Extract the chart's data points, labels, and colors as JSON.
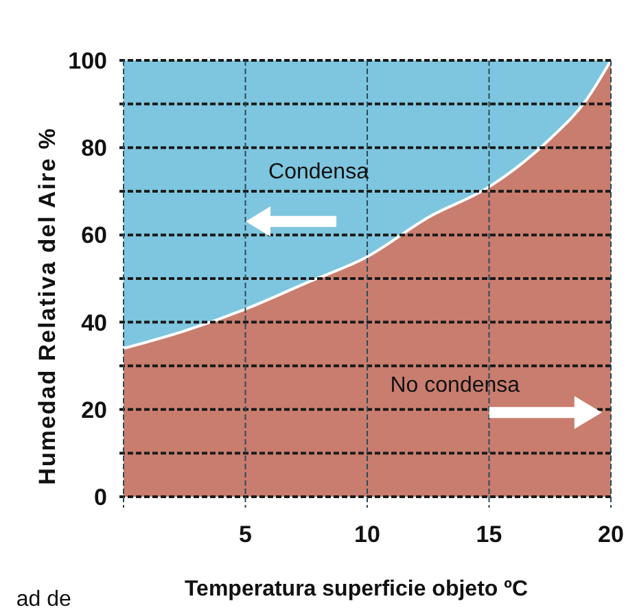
{
  "chart_data": {
    "type": "area",
    "stacked": true,
    "xlabel": "Temperatura superficie objeto ºC",
    "ylabel": "Humedad  Relativa del Aire %",
    "x": [
      0,
      2.5,
      5,
      7.5,
      10,
      12.5,
      15,
      17.5,
      19,
      20
    ],
    "series": [
      {
        "color": "#c97d6e",
        "values": [
          34,
          38,
          43,
          49,
          55,
          64,
          71,
          82,
          91,
          100
        ]
      },
      {
        "color": "#7ec6df",
        "values": [
          66,
          62,
          57,
          51,
          45,
          36,
          29,
          18,
          9,
          0
        ]
      }
    ],
    "xlim": [
      0,
      20
    ],
    "ylim": [
      0,
      100
    ],
    "xticks": [
      {
        "value": 0,
        "label": null
      },
      5,
      10,
      15,
      20
    ],
    "yticks": [
      0,
      {
        "value": 10,
        "label": null
      },
      20,
      {
        "value": 30,
        "label": null
      },
      40,
      {
        "value": 50,
        "label": null
      },
      60,
      {
        "value": 70,
        "label": null
      },
      80,
      {
        "value": 90,
        "label": null
      },
      100
    ],
    "grid": true,
    "line_style": "dashed",
    "annotations": [
      "Condensa",
      "No condensa",
      "ad de"
    ]
  }
}
